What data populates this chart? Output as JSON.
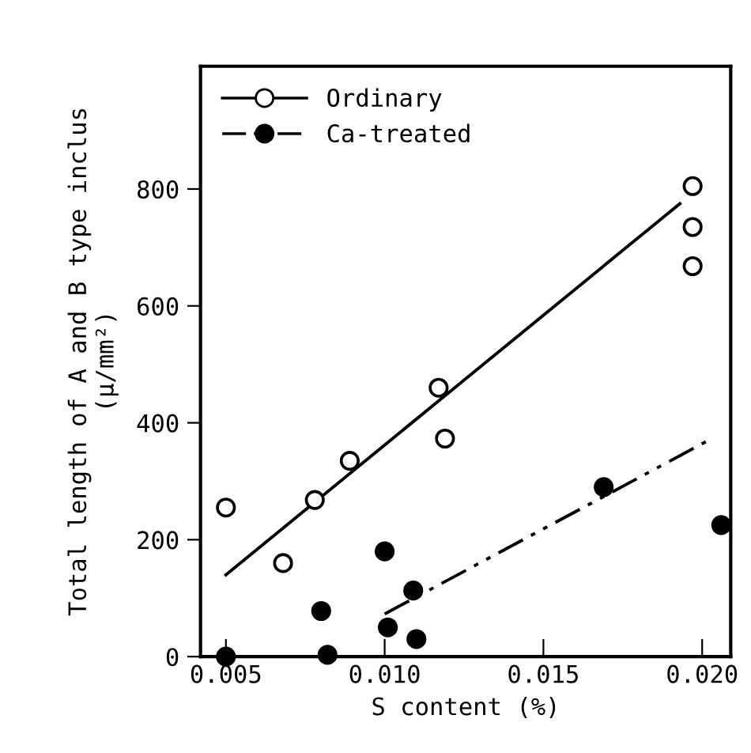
{
  "chart_data": {
    "type": "scatter",
    "xlabel": "S content (%)",
    "ylabel": "Total length of A and B type inclus\n(μ/mm²)",
    "xlim": [
      0.0042,
      0.0209
    ],
    "ylim": [
      0,
      1010
    ],
    "xticks": [
      {
        "value": 0.005,
        "label": "0.005"
      },
      {
        "value": 0.01,
        "label": "0.010"
      },
      {
        "value": 0.015,
        "label": "0.015"
      },
      {
        "value": 0.02,
        "label": "0.020"
      }
    ],
    "yticks": [
      0,
      200,
      400,
      600,
      800
    ],
    "grid": false,
    "legend": "top left",
    "series": [
      {
        "name": "Ordinary",
        "marker": "circle",
        "color": "#ffffff",
        "x": [
          0.005,
          0.0068,
          0.0078,
          0.0089,
          0.0117,
          0.0119,
          0.0197,
          0.0197,
          0.0197
        ],
        "values": [
          255,
          160,
          268,
          335,
          460,
          373,
          805,
          735,
          668
        ]
      },
      {
        "type": "line",
        "color": "#000000",
        "line_style": "solid",
        "x": [
          0.005,
          0.0193
        ],
        "values": [
          140,
          775
        ]
      },
      {
        "name": "Ca-treated",
        "marker": "circle",
        "color": "#000000",
        "x": [
          0.005,
          0.008,
          0.0082,
          0.01,
          0.0101,
          0.0109,
          0.011,
          0.0169,
          0.0206
        ],
        "values": [
          0,
          78,
          3,
          180,
          50,
          113,
          30,
          290,
          225
        ]
      },
      {
        "type": "line",
        "color": "#000000",
        "line_style": "dashed",
        "x": [
          0.01,
          0.0202
        ],
        "values": [
          73,
          370
        ]
      }
    ]
  }
}
